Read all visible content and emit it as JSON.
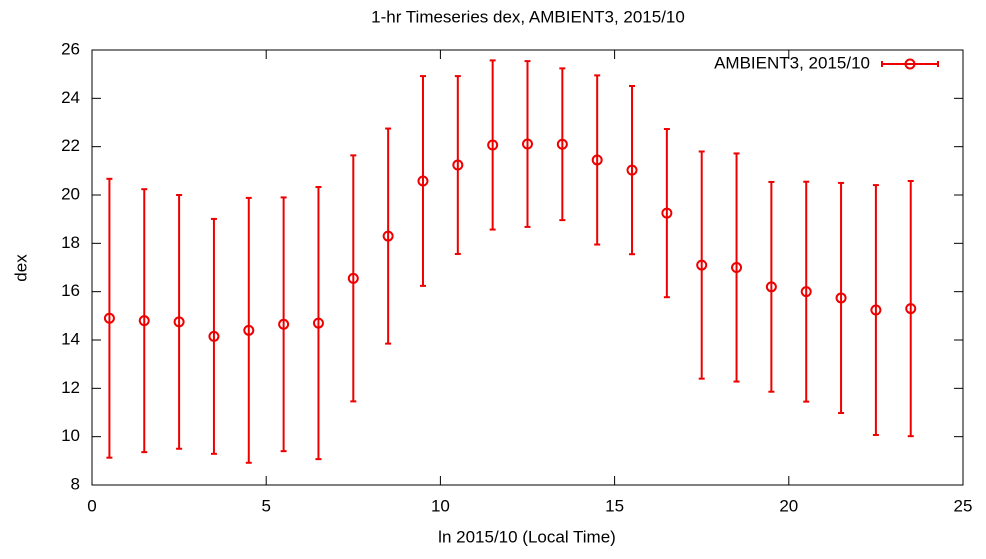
{
  "chart_data": {
    "type": "errorbar",
    "title": "1-hr Timeseries dex, AMBIENT3, 2015/10",
    "x_label": "ln 2015/10 (Local Time)",
    "y_label": "dex",
    "xlim": [
      0,
      25
    ],
    "xticks": [
      0,
      5,
      10,
      15,
      20,
      25
    ],
    "ylim": [
      8,
      26
    ],
    "yticks": [
      8,
      10,
      12,
      14,
      16,
      18,
      20,
      22,
      24,
      26
    ],
    "grid": false,
    "legend": "top-right",
    "x": [
      0.5,
      1.5,
      2.5,
      3.5,
      4.5,
      5.5,
      6.5,
      7.5,
      8.5,
      9.5,
      10.5,
      11.5,
      12.5,
      13.5,
      14.5,
      15.5,
      16.5,
      17.5,
      18.5,
      19.5,
      20.5,
      21.5,
      22.5,
      23.5
    ],
    "series": [
      {
        "name": "AMBIENT3, 2015/10",
        "color": "#ee0000",
        "values": [
          14.9,
          14.8,
          14.75,
          14.15,
          14.4,
          14.65,
          14.7,
          16.55,
          18.3,
          20.58,
          21.24,
          22.07,
          22.11,
          22.1,
          21.45,
          21.03,
          19.25,
          17.1,
          17.0,
          16.2,
          16.0,
          15.74,
          15.24,
          15.3
        ],
        "errors": [
          5.77,
          5.44,
          5.25,
          4.86,
          5.48,
          5.25,
          5.63,
          5.09,
          4.45,
          4.34,
          3.68,
          3.5,
          3.43,
          3.14,
          3.5,
          3.48,
          3.48,
          4.7,
          4.72,
          4.34,
          4.55,
          4.76,
          5.17,
          5.28
        ]
      }
    ]
  }
}
